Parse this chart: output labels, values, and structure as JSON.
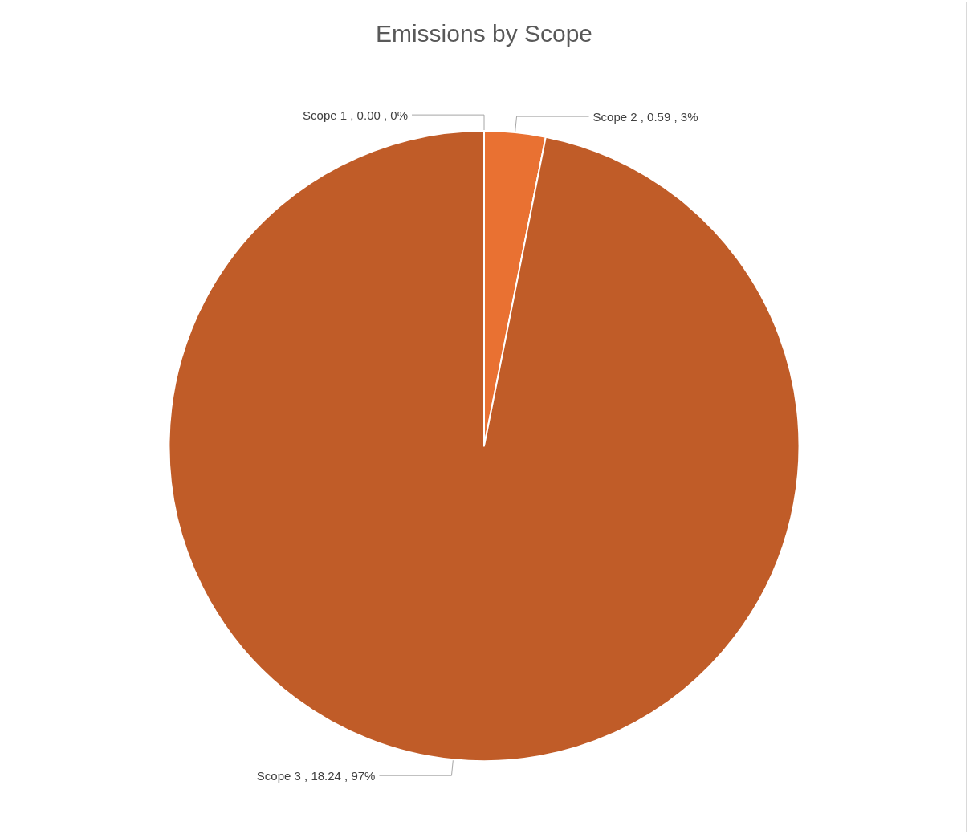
{
  "chart_data": {
    "type": "pie",
    "title": "Emissions by Scope",
    "categories": [
      "Scope 1",
      "Scope 2",
      "Scope 3"
    ],
    "values": [
      0.0,
      0.59,
      18.24
    ],
    "value_labels": [
      ", 0.00 , 0%",
      ", 0.59 , 3%",
      ", 18.24 , 97%"
    ],
    "colors": [
      "#a0461e",
      "#e97132",
      "#c05c28"
    ],
    "legend": false
  }
}
